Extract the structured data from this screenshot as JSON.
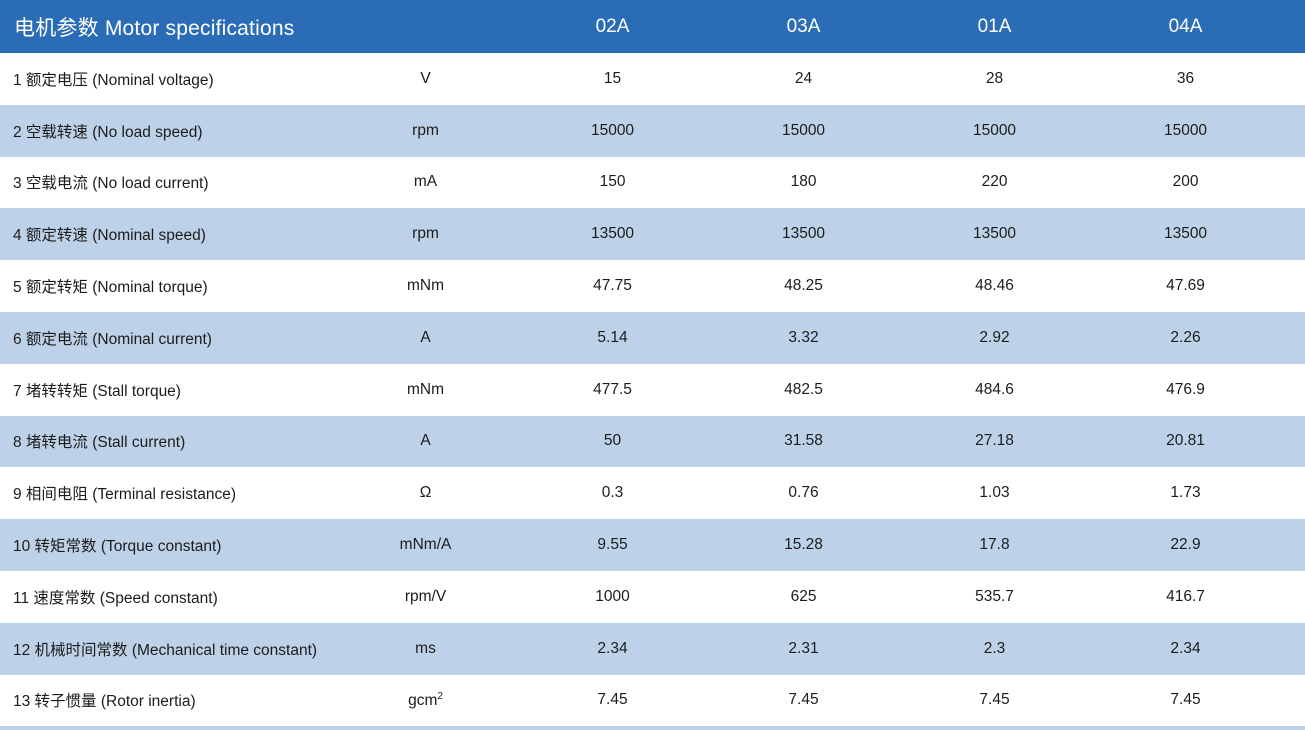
{
  "table": {
    "title": "电机参数 Motor specifications",
    "columns": [
      "02A",
      "03A",
      "01A",
      "04A"
    ],
    "rows": [
      {
        "label": "1 额定电压 (Nominal voltage)",
        "unit": "V",
        "values": [
          "15",
          "24",
          "28",
          "36"
        ]
      },
      {
        "label": "2 空载转速 (No load speed)",
        "unit": "rpm",
        "values": [
          "15000",
          "15000",
          "15000",
          "15000"
        ]
      },
      {
        "label": "3 空载电流 (No load current)",
        "unit": "mA",
        "values": [
          "150",
          "180",
          "220",
          "200"
        ]
      },
      {
        "label": "4 额定转速 (Nominal speed)",
        "unit": "rpm",
        "values": [
          "13500",
          "13500",
          "13500",
          "13500"
        ]
      },
      {
        "label": "5 额定转矩 (Nominal torque)",
        "unit": "mNm",
        "values": [
          "47.75",
          "48.25",
          "48.46",
          "47.69"
        ]
      },
      {
        "label": "6 额定电流 (Nominal current)",
        "unit": "A",
        "values": [
          "5.14",
          "3.32",
          "2.92",
          "2.26"
        ]
      },
      {
        "label": "7 堵转转矩 (Stall torque)",
        "unit": "mNm",
        "values": [
          "477.5",
          "482.5",
          "484.6",
          "476.9"
        ]
      },
      {
        "label": "8 堵转电流 (Stall current)",
        "unit": "A",
        "values": [
          "50",
          "31.58",
          "27.18",
          "20.81"
        ]
      },
      {
        "label": "9 相间电阻 (Terminal resistance)",
        "unit": "Ω",
        "values": [
          "0.3",
          "0.76",
          "1.03",
          "1.73"
        ]
      },
      {
        "label": "10 转矩常数 (Torque constant)",
        "unit": "mNm/A",
        "values": [
          "9.55",
          "15.28",
          "17.8",
          "22.9"
        ]
      },
      {
        "label": "11 速度常数 (Speed constant)",
        "unit": "rpm/V",
        "values": [
          "1000",
          "625",
          "535.7",
          "416.7"
        ]
      },
      {
        "label": "12 机械时间常数 (Mechanical time constant)",
        "unit": "ms",
        "values": [
          "2.34",
          "2.31",
          "2.3",
          "2.34"
        ]
      },
      {
        "label": "13 转子惯量 (Rotor inertia)",
        "unit": "gcm²",
        "values": [
          "7.45",
          "7.45",
          "7.45",
          "7.45"
        ]
      }
    ]
  },
  "colors": {
    "header_bg": "#2a6cb5",
    "alt_row_bg": "#bdd2e8",
    "header_text": "#ffffff",
    "body_text": "#1c1c1c"
  }
}
